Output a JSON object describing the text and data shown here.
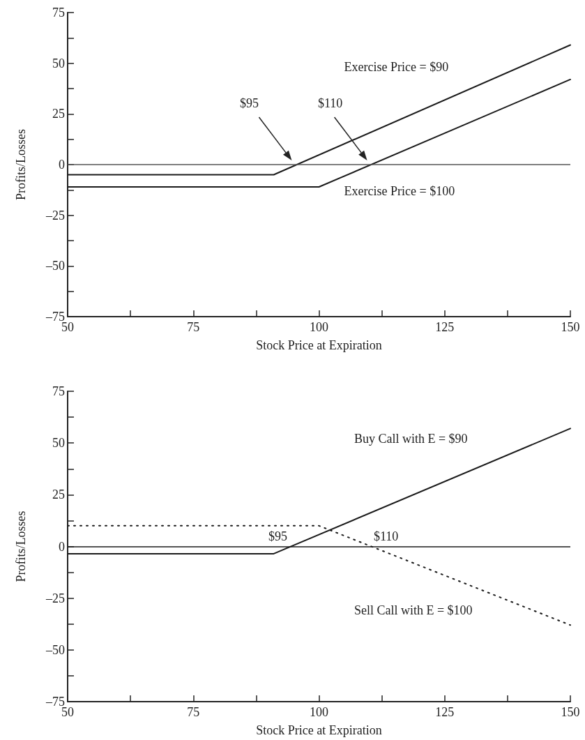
{
  "chart_data": [
    {
      "type": "line",
      "xlabel": "Stock Price at Expiration",
      "ylabel": "Profits/Losses",
      "xlim": [
        50,
        150
      ],
      "ylim": [
        -75,
        75
      ],
      "xticks": [
        50,
        {
          "value": 62.5,
          "label": null
        },
        75,
        {
          "value": 87.5,
          "label": null
        },
        100,
        {
          "value": 112.5,
          "label": null
        },
        125,
        {
          "value": 137.5,
          "label": null
        },
        150
      ],
      "yticks": [
        {
          "value": -75,
          "label": "–75"
        },
        {
          "value": -62.5,
          "label": null
        },
        {
          "value": -50,
          "label": "–50"
        },
        {
          "value": -37.5,
          "label": null
        },
        {
          "value": -25,
          "label": "–25"
        },
        {
          "value": -12.5,
          "label": null
        },
        0,
        {
          "value": 12.5,
          "label": null
        },
        25,
        {
          "value": 37.5,
          "label": null
        },
        50,
        {
          "value": 62.5,
          "label": null
        },
        75
      ],
      "series": [
        {
          "name": "Exercise Price = $90",
          "color": "#1a1a1a",
          "x": [
            50,
            91,
            150
          ],
          "values": [
            -5,
            -5,
            59
          ]
        },
        {
          "name": "Exercise Price = $100",
          "color": "#1a1a1a",
          "x": [
            50,
            100,
            150
          ],
          "values": [
            -11,
            -11,
            42
          ]
        }
      ],
      "ref_lines": [
        {
          "axis": "y",
          "value": 0,
          "color": "#555555"
        }
      ],
      "annotations": [
        "$95",
        "$110"
      ],
      "marker": "none",
      "line_style": "solid",
      "grid": false,
      "legend": false
    },
    {
      "type": "line",
      "xlabel": "Stock Price at Expiration",
      "ylabel": "Profits/Losses",
      "xlim": [
        50,
        150
      ],
      "ylim": [
        -75,
        75
      ],
      "xticks": [
        50,
        {
          "value": 62.5,
          "label": null
        },
        75,
        {
          "value": 87.5,
          "label": null
        },
        100,
        {
          "value": 112.5,
          "label": null
        },
        125,
        {
          "value": 137.5,
          "label": null
        },
        150
      ],
      "yticks": [
        {
          "value": -75,
          "label": "–75"
        },
        {
          "value": -62.5,
          "label": null
        },
        {
          "value": -50,
          "label": "–50"
        },
        {
          "value": -37.5,
          "label": null
        },
        {
          "value": -25,
          "label": "–25"
        },
        {
          "value": -12.5,
          "label": null
        },
        0,
        {
          "value": 12.5,
          "label": null
        },
        25,
        {
          "value": 37.5,
          "label": null
        },
        50,
        {
          "value": 62.5,
          "label": null
        },
        75
      ],
      "series": [
        {
          "name": "Buy Call with E = $90",
          "color": "#1a1a1a",
          "x": [
            50,
            91,
            150
          ],
          "values": [
            -3.5,
            -3.5,
            57
          ]
        },
        {
          "name": "Sell Call with E = $100",
          "color": "#1a1a1a",
          "line_style": "dotted",
          "x": [
            50,
            100,
            150
          ],
          "values": [
            10,
            10,
            -38
          ]
        }
      ],
      "ref_lines": [
        {
          "axis": "y",
          "value": 0,
          "color": "#1a1a1a"
        }
      ],
      "annotations": [
        "$95",
        "$110"
      ],
      "marker": "none",
      "line_style": "solid",
      "grid": false,
      "legend": false
    }
  ]
}
